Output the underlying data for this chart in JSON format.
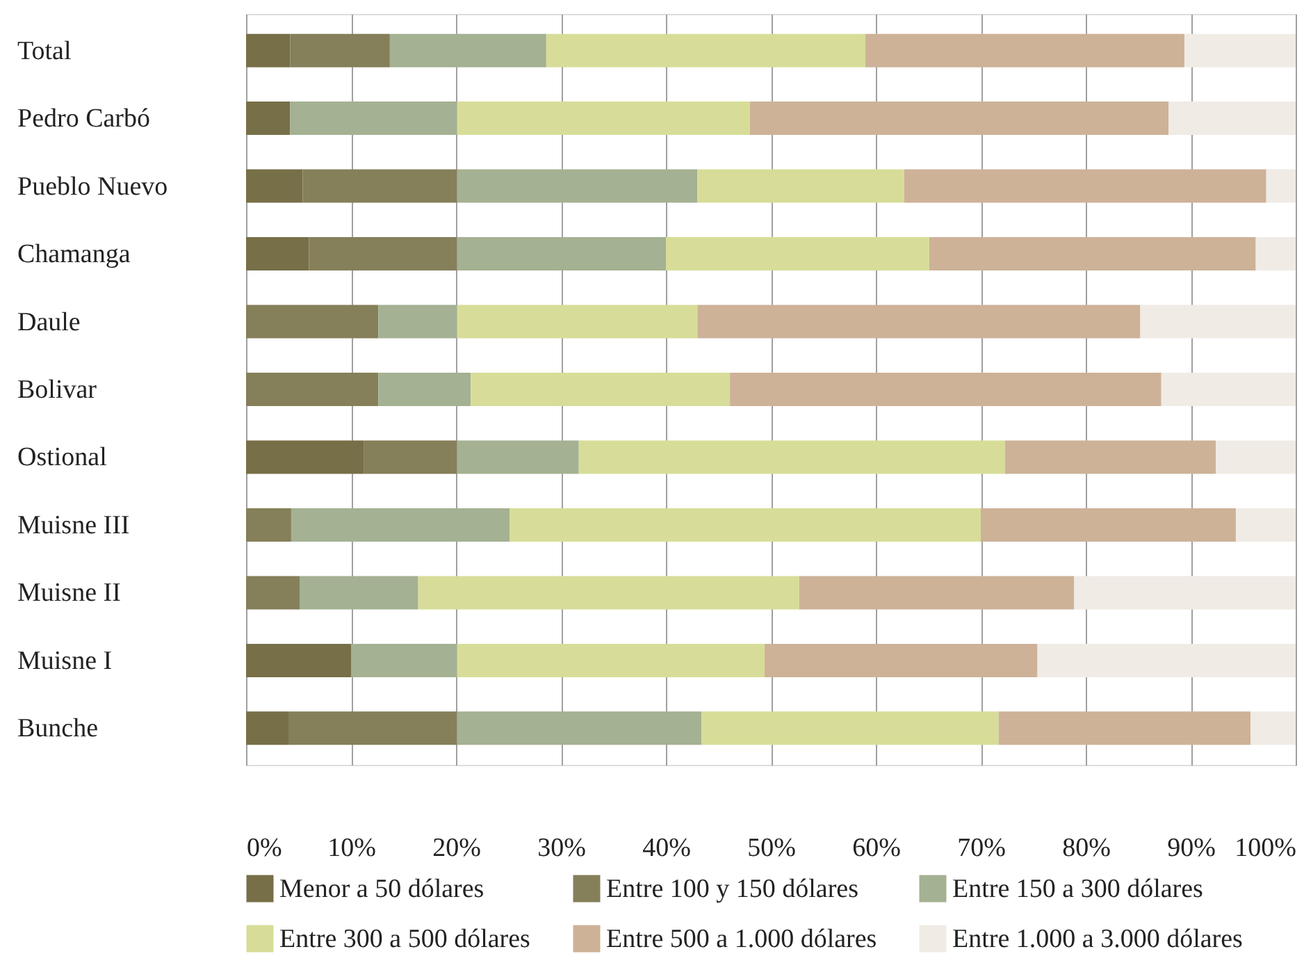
{
  "chart_data": {
    "type": "bar",
    "orientation": "horizontal",
    "stacked": true,
    "categories": [
      "Total",
      "Pedro Carbó",
      "Pueblo Nuevo",
      "Chamanga",
      "Daule",
      "Bolivar",
      "Ostional",
      "Muisne III",
      "Muisne II",
      "Muisne I",
      "Bunche"
    ],
    "series": [
      {
        "name": "Menor a 50 dólares",
        "color": "#776f47",
        "values": [
          4.2,
          4.2,
          5.4,
          6.0,
          0,
          0,
          11.2,
          0,
          0,
          10.0,
          4.1
        ]
      },
      {
        "name": "Entre 100 y 150 dólares",
        "color": "#857f5a",
        "values": [
          9.5,
          0,
          14.7,
          14.1,
          12.6,
          12.6,
          8.9,
          4.3,
          5.1,
          0,
          16.0
        ]
      },
      {
        "name": "Entre 150 a 300 dólares",
        "color": "#a4b192",
        "values": [
          14.9,
          15.9,
          22.9,
          19.9,
          7.5,
          8.8,
          11.6,
          20.8,
          11.3,
          10.1,
          23.3
        ]
      },
      {
        "name": "Entre 300 a 500 dólares",
        "color": "#d7dd98",
        "values": [
          30.4,
          27.9,
          19.7,
          25.1,
          22.9,
          24.7,
          40.6,
          44.9,
          36.3,
          29.3,
          28.3
        ]
      },
      {
        "name": "Entre 500 a 1.000 dólares",
        "color": "#cdb298",
        "values": [
          30.4,
          39.9,
          34.5,
          31.1,
          42.2,
          41.1,
          20.1,
          24.3,
          26.2,
          26.0,
          24.0
        ]
      },
      {
        "name": "Entre 1.000 a 3.000 dólares",
        "color": "#f0ebe5",
        "values": [
          10.6,
          12.1,
          2.8,
          3.8,
          14.8,
          12.8,
          7.6,
          5.7,
          21.1,
          24.6,
          4.3
        ]
      }
    ],
    "xlim": [
      0,
      100
    ],
    "xticks": [
      {
        "value": 0,
        "label": "0%"
      },
      {
        "value": 10,
        "label": "10%"
      },
      {
        "value": 20,
        "label": "20%"
      },
      {
        "value": 30,
        "label": "30%"
      },
      {
        "value": 40,
        "label": "40%"
      },
      {
        "value": 50,
        "label": "50%"
      },
      {
        "value": 60,
        "label": "60%"
      },
      {
        "value": 70,
        "label": "70%"
      },
      {
        "value": 80,
        "label": "80%"
      },
      {
        "value": 90,
        "label": "90%"
      },
      {
        "value": 100,
        "label": "100%"
      }
    ],
    "grid": "x",
    "legend": "bottom"
  }
}
